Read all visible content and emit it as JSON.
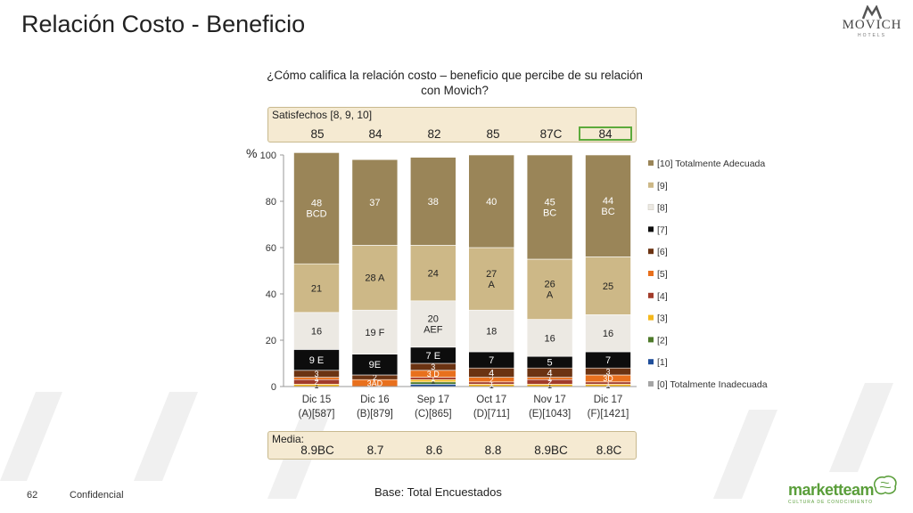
{
  "page": {
    "title": "Relación Costo - Beneficio",
    "question": "¿Cómo califica la relación costo – beneficio que percibe de su relación con Movich?",
    "logo_text": "MOVICH",
    "logo_subtext": "HOTELS",
    "satisfied_label": "Satisfechos [8, 9, 10]",
    "satisfied_values": [
      "85",
      "84",
      "82",
      "85",
      "87C",
      "84"
    ],
    "media_label": "Media:",
    "media_values": [
      "8.9BC",
      "8.7",
      "8.6",
      "8.8",
      "8.9BC",
      "8.8C"
    ],
    "y_unit": "%",
    "base": "Base: Total Encuestados",
    "page_number": "62",
    "confidential": "Confidencial",
    "brand": "marketteam",
    "brand_tagline": "CULTURA DE CONOCIMIENTO",
    "highlight_color": "#5caa3c"
  },
  "chart_data": {
    "type": "bar",
    "stacked": true,
    "categories": [
      "Dic 15",
      "Dic 16",
      "Sep 17",
      "Oct 17",
      "Nov 17",
      "Dic 17"
    ],
    "category_sublabels": [
      "(A)[587]",
      "(B)[879]",
      "(C)[865]",
      "(D)[711]",
      "(E)[1043]",
      "(F)[1421]"
    ],
    "ylim": [
      0,
      100
    ],
    "yticks": [
      "0",
      "20",
      "40",
      "60",
      "80",
      "100"
    ],
    "legend_position": "right",
    "series": [
      {
        "name": "[0] Totalmente Inadecuada",
        "color": "#a5a5a5",
        "values": [
          0,
          0,
          0,
          0,
          0,
          0
        ],
        "labels": [
          "",
          "",
          "",
          "",
          "",
          ""
        ]
      },
      {
        "name": "[1]",
        "color": "#1f4e9a",
        "values": [
          0,
          0,
          1,
          0,
          0,
          0
        ],
        "labels": [
          "",
          "",
          "",
          "",
          "",
          ""
        ]
      },
      {
        "name": "[2]",
        "color": "#4e7a2a",
        "values": [
          0,
          0,
          1,
          0,
          0,
          0
        ],
        "labels": [
          "",
          "",
          "",
          "",
          "",
          ""
        ]
      },
      {
        "name": "[3]",
        "color": "#f5b81c",
        "values": [
          1,
          0,
          1,
          1,
          1,
          1
        ],
        "labels": [
          "1",
          "",
          "1",
          "1",
          "1",
          "1"
        ]
      },
      {
        "name": "[4]",
        "color": "#a23b2a",
        "values": [
          2,
          0,
          1,
          1,
          2,
          1
        ],
        "labels": [
          "2",
          "",
          "1",
          "1",
          "2",
          "1"
        ]
      },
      {
        "name": "[5]",
        "color": "#e8701d",
        "values": [
          1,
          3,
          3,
          2,
          1,
          3
        ],
        "labels": [
          "1",
          "3AD",
          "3 D",
          "2",
          "1",
          "3D"
        ]
      },
      {
        "name": "[6]",
        "color": "#6b3312",
        "values": [
          3,
          2,
          3,
          4,
          4,
          3
        ],
        "labels": [
          "3",
          "2",
          "3",
          "4",
          "4",
          "3"
        ]
      },
      {
        "name": "[7]",
        "color": "#0d0d0d",
        "values": [
          9,
          9,
          7,
          7,
          5,
          7
        ],
        "labels": [
          "9 E",
          "9E",
          "7 E",
          "7",
          "5",
          "7"
        ]
      },
      {
        "name": "[8]",
        "color": "#ece9e3",
        "values": [
          16,
          19,
          20,
          18,
          16,
          16
        ],
        "labels": [
          "16",
          "19 F",
          "20\nAEF",
          "18",
          "16",
          "16"
        ]
      },
      {
        "name": "[9]",
        "color": "#cdb887",
        "values": [
          21,
          28,
          24,
          27,
          26,
          25
        ],
        "labels": [
          "21",
          "28 A",
          "24",
          "27\nA",
          "26\nA",
          "25"
        ]
      },
      {
        "name": "[10] Totalmente Adecuada",
        "color": "#9a8558",
        "values": [
          48,
          37,
          38,
          40,
          45,
          44
        ],
        "labels": [
          "48\nBCD",
          "37",
          "38",
          "40",
          "45\nBC",
          "44\nBC"
        ]
      }
    ]
  }
}
